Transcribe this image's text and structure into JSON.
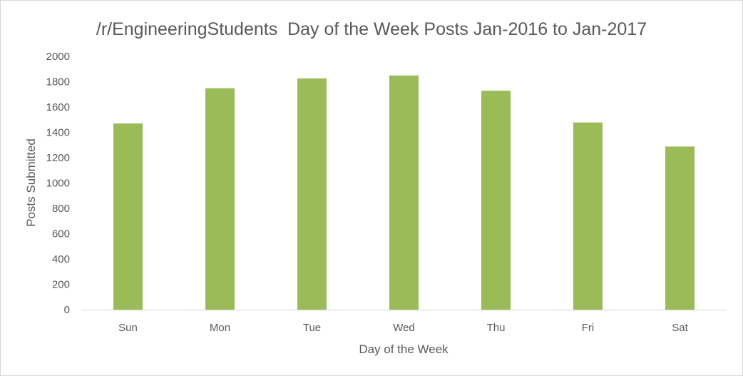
{
  "chart_data": {
    "type": "bar",
    "title": "/r/EngineeringStudents  Day of the Week Posts Jan-2016 to Jan-2017",
    "xlabel": "Day of the Week",
    "ylabel": "Posts Submitted",
    "categories": [
      "Sun",
      "Mon",
      "Tue",
      "Wed",
      "Thu",
      "Fri",
      "Sat"
    ],
    "values": [
      1470,
      1748,
      1826,
      1849,
      1729,
      1478,
      1288
    ],
    "ylim": [
      0,
      2000
    ],
    "yticks": [
      "0",
      "200",
      "400",
      "600",
      "800",
      "1000",
      "1200",
      "1400",
      "1600",
      "1800",
      "2000"
    ],
    "grid": false,
    "legend": "none",
    "bar_color": "#9bbb59",
    "axis_color": "#d9d9d9"
  }
}
